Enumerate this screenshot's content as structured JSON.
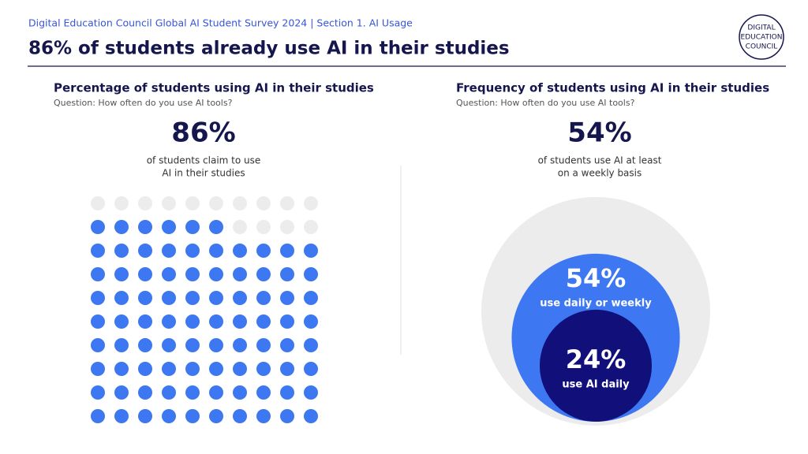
{
  "header": {
    "kicker": "Digital Education Council Global AI Student Survey 2024 | Section 1. AI Usage",
    "title": "86% of students already use AI in their studies",
    "logo": [
      "DIGITAL",
      "EDUCATION",
      "COUNCIL"
    ]
  },
  "chart_data": [
    {
      "type": "waffle",
      "title": "Percentage of students using AI in their studies",
      "subtitle": "Question: How often do you use AI tools?",
      "values": [
        86
      ],
      "value_labels": [
        "86%"
      ],
      "caption": [
        "of students claim to use",
        "AI in their studies"
      ],
      "color": "#3d77f2",
      "empty_color": "#ececec"
    },
    {
      "type": "nested-circles",
      "title": "Frequency of students using AI in their studies",
      "subtitle": "Question: How often do you use AI tools?",
      "headline": "54%",
      "caption": [
        "of students use AI at least",
        "on a weekly basis"
      ],
      "values": [
        54,
        24
      ],
      "value_labels": [
        "54%",
        "24%"
      ],
      "labels": [
        "use daily or weekly",
        "use AI daily"
      ],
      "colors": [
        "#3d77f2",
        "#11107a"
      ],
      "background_color": "#ececec"
    }
  ]
}
